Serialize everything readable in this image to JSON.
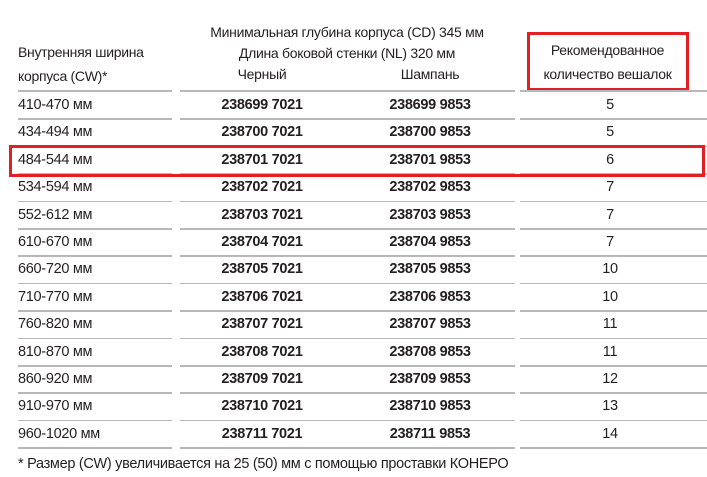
{
  "header": {
    "cw_label_line1": "Внутренняя ширина",
    "cw_label_line2": "корпуса (CW)*",
    "depth_line": "Минимальная глубина корпуса (CD) 345 мм",
    "side_wall_line": "Длина боковой стенки (NL) 320 мм",
    "black_label": "Черный",
    "champagne_label": "Шампань",
    "qty_label_line1": "Рекомендованное",
    "qty_label_line2": "количество вешалок"
  },
  "rows": [
    {
      "cw": "410-470 мм",
      "black": "238699 7021",
      "champagne": "238699 9853",
      "qty": "5"
    },
    {
      "cw": "434-494 мм",
      "black": "238700 7021",
      "champagne": "238700 9853",
      "qty": "5"
    },
    {
      "cw": "484-544 мм",
      "black": "238701 7021",
      "champagne": "238701 9853",
      "qty": "6"
    },
    {
      "cw": "534-594 мм",
      "black": "238702 7021",
      "champagne": "238702 9853",
      "qty": "7"
    },
    {
      "cw": "552-612 мм",
      "black": "238703 7021",
      "champagne": "238703 9853",
      "qty": "7"
    },
    {
      "cw": "610-670 мм",
      "black": "238704 7021",
      "champagne": "238704 9853",
      "qty": "7"
    },
    {
      "cw": "660-720 мм",
      "black": "238705 7021",
      "champagne": "238705 9853",
      "qty": "10"
    },
    {
      "cw": "710-770 мм",
      "black": "238706 7021",
      "champagne": "238706 9853",
      "qty": "10"
    },
    {
      "cw": "760-820 мм",
      "black": "238707 7021",
      "champagne": "238707 9853",
      "qty": "11"
    },
    {
      "cw": "810-870 мм",
      "black": "238708 7021",
      "champagne": "238708 9853",
      "qty": "11"
    },
    {
      "cw": "860-920 мм",
      "black": "238709 7021",
      "champagne": "238709 9853",
      "qty": "12"
    },
    {
      "cw": "910-970 мм",
      "black": "238710 7021",
      "champagne": "238710 9853",
      "qty": "13"
    },
    {
      "cw": "960-1020 мм",
      "black": "238711 7021",
      "champagne": "238711 9853",
      "qty": "14"
    }
  ],
  "highlighted_row": 2,
  "footnote": "* Размер (CW) увеличивается на 25 (50) мм с помощью проставки КОНЕРО",
  "colors": {
    "highlight": "#e31e24",
    "separator": "#b8b8b8",
    "text": "#231f20"
  }
}
